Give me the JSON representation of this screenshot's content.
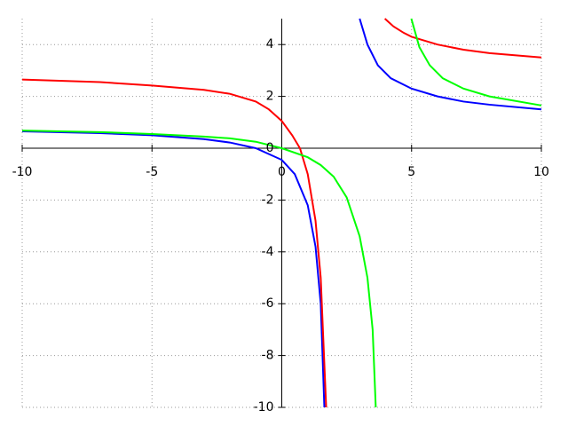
{
  "chart_data": {
    "type": "line",
    "xlim": [
      -10,
      10
    ],
    "ylim": [
      -10,
      5
    ],
    "xticks": [
      -10,
      -5,
      0,
      5,
      10
    ],
    "yticks": [
      -10,
      -8,
      -6,
      -4,
      -2,
      0,
      2,
      4
    ],
    "grid": true,
    "series": [
      {
        "color": "#0000ff",
        "x": [
          -10,
          -7,
          -5,
          -3,
          -2,
          -1,
          0,
          0.5,
          1,
          1.3,
          1.5,
          1.64,
          null,
          3,
          3.3,
          3.7,
          4.2,
          5,
          6,
          7,
          8,
          10
        ],
        "values": [
          0.65,
          0.58,
          0.5,
          0.35,
          0.22,
          0.0,
          -0.45,
          -1.0,
          -2.2,
          -3.8,
          -6,
          -10,
          null,
          5,
          4,
          3.2,
          2.7,
          2.3,
          2.0,
          1.8,
          1.68,
          1.5
        ]
      },
      {
        "color": "#ff0000",
        "x": [
          -10,
          -7,
          -5,
          -3,
          -2,
          -1,
          -0.5,
          0,
          0.4,
          0.7,
          1,
          1.3,
          1.5,
          1.71,
          null,
          3.97,
          4.3,
          4.7,
          5,
          5.5,
          6,
          7,
          8,
          10
        ],
        "values": [
          2.65,
          2.55,
          2.42,
          2.25,
          2.1,
          1.8,
          1.5,
          1.05,
          0.5,
          0,
          -1.0,
          -2.8,
          -5,
          -10,
          null,
          5,
          4.7,
          4.45,
          4.3,
          4.15,
          4.0,
          3.8,
          3.67,
          3.5
        ]
      },
      {
        "color": "#00ff00",
        "x": [
          -10,
          -7,
          -5,
          -3,
          -2,
          -1,
          0,
          1,
          1.5,
          2,
          2.5,
          3,
          3.3,
          3.5,
          3.62,
          null,
          4.99,
          5.3,
          5.7,
          6.2,
          7,
          8,
          10
        ],
        "values": [
          0.68,
          0.62,
          0.55,
          0.45,
          0.38,
          0.25,
          0.0,
          -0.35,
          -0.65,
          -1.1,
          -1.9,
          -3.4,
          -5,
          -7,
          -10,
          null,
          5,
          3.9,
          3.2,
          2.7,
          2.3,
          2.0,
          1.65
        ]
      }
    ]
  }
}
